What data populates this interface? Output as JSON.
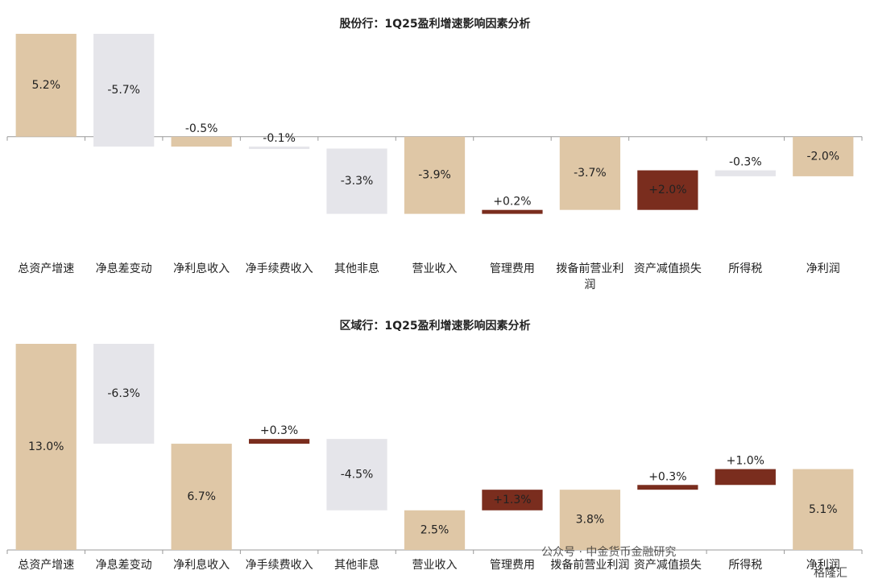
{
  "chart_data": [
    {
      "type": "waterfall",
      "title": "股份行：1Q25盈利增速影响因素分析",
      "categories": [
        "总资产增速",
        "净息差变动",
        "净利息收入",
        "净手续费收入",
        "其他非息",
        "营业收入",
        "管理费用",
        "拨备前营业利润",
        "资产减值损失",
        "所得税",
        "净利润"
      ],
      "values": [
        5.2,
        -5.7,
        -0.5,
        -0.1,
        -3.3,
        -3.9,
        0.2,
        -3.7,
        2.0,
        -0.3,
        -2.0
      ],
      "value_labels": [
        "5.2%",
        "-5.7%",
        "-0.5%",
        "-0.1%",
        "-3.3%",
        "-3.9%",
        "+0.2%",
        "-3.7%",
        "+2.0%",
        "-0.3%",
        "-2.0%"
      ],
      "measure": [
        "absolute",
        "relative",
        "absolute",
        "relative",
        "relative",
        "absolute",
        "relative",
        "absolute",
        "relative",
        "relative",
        "absolute"
      ],
      "colors": {
        "total": "#dfc7a6",
        "increase": "#7a2d1e",
        "decrease": "#e5e5ea"
      },
      "ylim": [
        -5.3,
        5.2
      ]
    },
    {
      "type": "waterfall",
      "title": "区域行：1Q25盈利增速影响因素分析",
      "categories": [
        "总资产增速",
        "净息差变动",
        "净利息收入",
        "净手续费收入",
        "其他非息",
        "营业收入",
        "管理费用",
        "拨备前营业利润",
        "资产减值损失",
        "所得税",
        "净利润"
      ],
      "values": [
        13.0,
        -6.3,
        6.7,
        0.3,
        -4.5,
        2.5,
        1.3,
        3.8,
        0.3,
        1.0,
        5.1
      ],
      "value_labels": [
        "13.0%",
        "-6.3%",
        "6.7%",
        "+0.3%",
        "-4.5%",
        "2.5%",
        "+1.3%",
        "3.8%",
        "+0.3%",
        "+1.0%",
        "5.1%"
      ],
      "measure": [
        "absolute",
        "relative",
        "absolute",
        "relative",
        "relative",
        "absolute",
        "relative",
        "absolute",
        "relative",
        "relative",
        "absolute"
      ],
      "colors": {
        "total": "#dfc7a6",
        "increase": "#7a2d1e",
        "decrease": "#e5e5ea"
      },
      "ylim": [
        0,
        13.0
      ]
    }
  ],
  "watermarks": [
    "公众号 · 中金货币金融研究",
    "格隆汇"
  ]
}
